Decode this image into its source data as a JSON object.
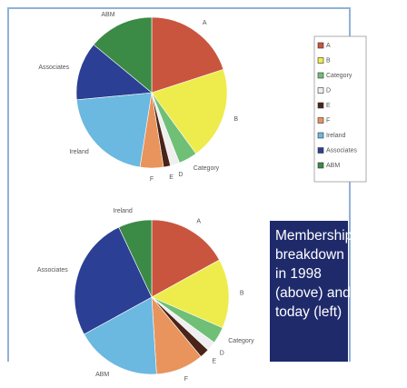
{
  "chart_data": [
    {
      "type": "pie",
      "categories": [
        "A",
        "B",
        "Category",
        "D",
        "E",
        "F",
        "Ireland",
        "Associates",
        "ABM"
      ],
      "values": [
        20,
        20,
        4,
        2,
        1.5,
        5,
        21,
        12.5,
        14
      ],
      "colors": [
        "#c9553f",
        "#eeec4c",
        "#6fbf76",
        "#efefef",
        "#4a2418",
        "#e8945c",
        "#6bb8e0",
        "#2b3f94",
        "#3b8a45"
      ],
      "legend": "right"
    },
    {
      "type": "pie",
      "categories": [
        "A",
        "B",
        "Category",
        "D",
        "E",
        "F",
        "ABM",
        "Associates",
        "Ireland"
      ],
      "values": [
        17,
        14.5,
        3.5,
        2,
        2,
        10,
        18,
        26,
        7
      ],
      "colors": [
        "#c9553f",
        "#eeec4c",
        "#6fbf76",
        "#efefef",
        "#4a2418",
        "#e8945c",
        "#6bb8e0",
        "#2b3f94",
        "#3b8a45"
      ]
    }
  ],
  "caption": [
    "Membership",
    "breakdown",
    "in 1998",
    "(above) and",
    "today (left)"
  ]
}
